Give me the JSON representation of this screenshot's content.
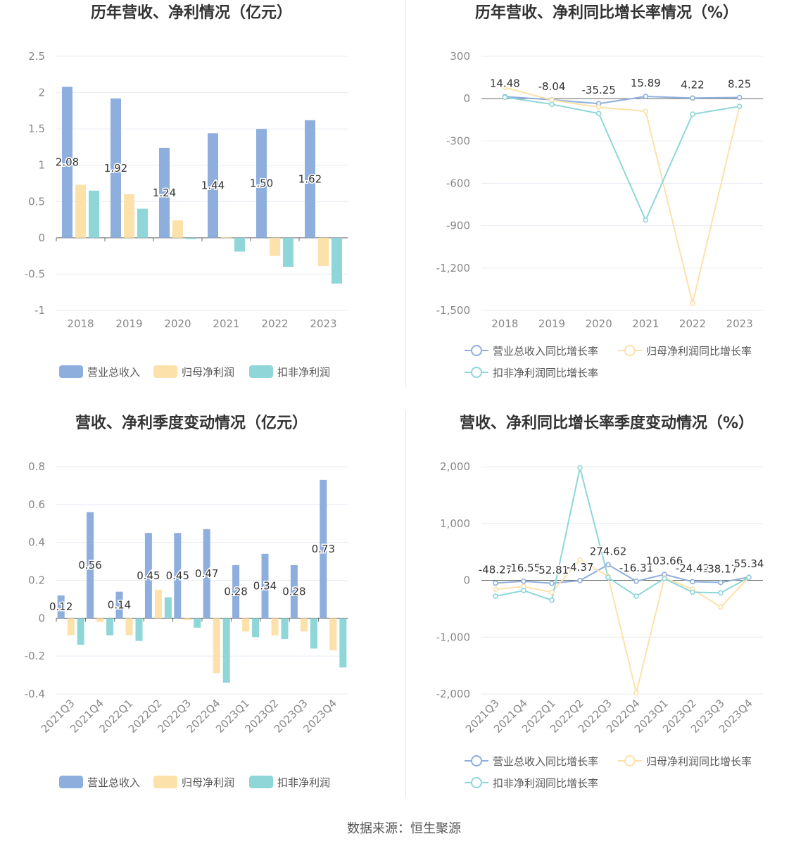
{
  "source": "数据来源：恒生聚源",
  "colors": {
    "revenue": "#8eaedd",
    "netprofit": "#fde1aa",
    "deducted": "#8ed6d8",
    "axis": "#666666",
    "grid": "#e8ebf3"
  },
  "chart_data": [
    {
      "type": "bar",
      "title": "历年营收、净利情况（亿元）",
      "categories": [
        "2018",
        "2019",
        "2020",
        "2021",
        "2022",
        "2023"
      ],
      "ylim": [
        -1,
        2.5
      ],
      "yticks": [
        2.5,
        2,
        1.5,
        1,
        0.5,
        0,
        -0.5,
        -1
      ],
      "ytick_labels": [
        "2.5",
        "2",
        "1.5",
        "1",
        "0.5",
        "0",
        "-0.5",
        "-1"
      ],
      "series": [
        {
          "name": "营业总收入",
          "values": [
            2.08,
            1.92,
            1.24,
            1.44,
            1.5,
            1.62
          ],
          "labels": [
            "2.08",
            "1.92",
            "1.24",
            "1.44",
            "1.50",
            "1.62"
          ]
        },
        {
          "name": "归母净利润",
          "values": [
            0.73,
            0.6,
            0.24,
            0.01,
            -0.25,
            -0.39
          ]
        },
        {
          "name": "扣非净利润",
          "values": [
            0.65,
            0.4,
            -0.02,
            -0.19,
            -0.4,
            -0.63
          ]
        }
      ],
      "grid": true,
      "legend": "bottom"
    },
    {
      "type": "line",
      "title": "历年营收、净利同比增长率情况（%）",
      "categories": [
        "2018",
        "2019",
        "2020",
        "2021",
        "2022",
        "2023"
      ],
      "ylim": [
        -1500,
        300
      ],
      "yticks": [
        300,
        0,
        -300,
        -600,
        -900,
        -1200,
        -1500
      ],
      "ytick_labels": [
        "300",
        "0",
        "-300",
        "-600",
        "-900",
        "-1,200",
        "-1,500"
      ],
      "series": [
        {
          "name": "营业总收入同比增长率",
          "values": [
            14.48,
            -8.04,
            -35.25,
            15.89,
            4.22,
            8.25
          ],
          "labels": [
            "14.48",
            "-8.04",
            "-35.25",
            "15.89",
            "4.22",
            "8.25"
          ]
        },
        {
          "name": "归母净利润同比增长率",
          "values": [
            80,
            -10,
            -60,
            -90,
            -1450,
            -55
          ]
        },
        {
          "name": "扣非净利润同比增长率",
          "values": [
            10,
            -40,
            -105,
            -860,
            -110,
            -55
          ]
        }
      ],
      "grid": true,
      "legend": "bottom"
    },
    {
      "type": "bar",
      "title": "营收、净利季度变动情况（亿元）",
      "categories": [
        "2021Q3",
        "2021Q4",
        "2022Q1",
        "2022Q2",
        "2022Q3",
        "2022Q4",
        "2023Q1",
        "2023Q2",
        "2023Q3",
        "2023Q4"
      ],
      "ylim": [
        -0.4,
        0.8
      ],
      "yticks": [
        0.8,
        0.6,
        0.4,
        0.2,
        0,
        -0.2,
        -0.4
      ],
      "ytick_labels": [
        "0.8",
        "0.6",
        "0.4",
        "0.2",
        "0",
        "-0.2",
        "-0.4"
      ],
      "series": [
        {
          "name": "营业总收入",
          "values": [
            0.12,
            0.56,
            0.14,
            0.45,
            0.45,
            0.47,
            0.28,
            0.34,
            0.28,
            0.73
          ],
          "labels": [
            "0.12",
            "0.56",
            "0.14",
            "0.45",
            "0.45",
            "0.47",
            "0.28",
            "0.34",
            "0.28",
            "0.73"
          ]
        },
        {
          "name": "归母净利润",
          "values": [
            -0.09,
            -0.02,
            -0.09,
            0.15,
            -0.01,
            -0.29,
            -0.07,
            -0.09,
            -0.07,
            -0.17
          ]
        },
        {
          "name": "扣非净利润",
          "values": [
            -0.14,
            -0.09,
            -0.12,
            0.11,
            -0.05,
            -0.34,
            -0.1,
            -0.11,
            -0.16,
            -0.26
          ]
        }
      ],
      "grid": true,
      "legend": "bottom"
    },
    {
      "type": "line",
      "title": "营收、净利同比增长率季度变动情况（%）",
      "categories": [
        "2021Q3",
        "2021Q4",
        "2022Q1",
        "2022Q2",
        "2022Q3",
        "2022Q4",
        "2023Q1",
        "2023Q2",
        "2023Q3",
        "2023Q4"
      ],
      "ylim": [
        -2000,
        2000
      ],
      "yticks": [
        2000,
        1000,
        0,
        -1000,
        -2000
      ],
      "ytick_labels": [
        "2,000",
        "1,000",
        "0",
        "-1,000",
        "-2,000"
      ],
      "series": [
        {
          "name": "营业总收入同比增长率",
          "values": [
            -48.27,
            -16.55,
            -52.81,
            -4.37,
            274.62,
            -16.31,
            103.66,
            -24.42,
            -38.17,
            55.34
          ],
          "labels": [
            "-48.27",
            "-16.55",
            "-52.81",
            "-4.37",
            "274.62",
            "-16.31",
            "103.66",
            "-24.42",
            "-38.17",
            "55.34"
          ]
        },
        {
          "name": "归母净利润同比增长率",
          "values": [
            -160,
            -110,
            -210,
            360,
            70,
            -1980,
            50,
            -160,
            -470,
            50
          ]
        },
        {
          "name": "扣非净利润同比增长率",
          "values": [
            -280,
            -180,
            -350,
            1980,
            50,
            -280,
            30,
            -210,
            -220,
            50
          ]
        }
      ],
      "grid": true,
      "legend": "bottom"
    }
  ]
}
